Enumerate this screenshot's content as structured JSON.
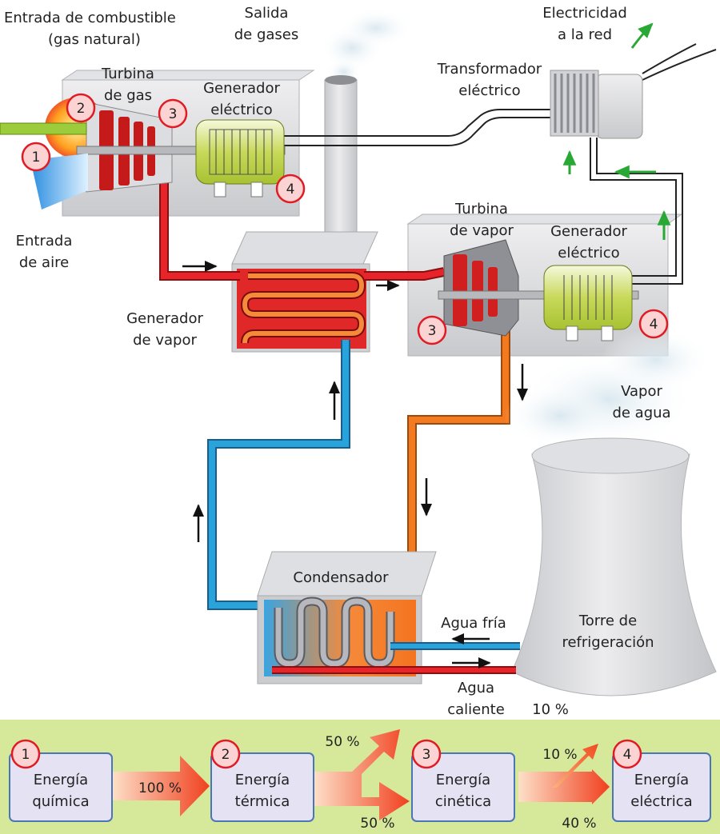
{
  "labels": {
    "fuel_inlet_1": "Entrada de combustible",
    "fuel_inlet_2": "(gas natural)",
    "air_inlet_1": "Entrada",
    "air_inlet_2": "de aire",
    "gas_turbine_1": "Turbina",
    "gas_turbine_2": "de gas",
    "generator_top_1": "Generador",
    "generator_top_2": "eléctrico",
    "gas_outlet_1": "Salida",
    "gas_outlet_2": "de gases",
    "grid_1": "Electricidad",
    "grid_2": "a la red",
    "transformer_1": "Transformador",
    "transformer_2": "eléctrico",
    "steam_turbine_1": "Turbina",
    "steam_turbine_2": "de vapor",
    "generator_right_1": "Generador",
    "generator_right_2": "eléctrico",
    "steam_generator_1": "Generador",
    "steam_generator_2": "de vapor",
    "water_vapor_1": "Vapor",
    "water_vapor_2": "de agua",
    "condenser": "Condensador",
    "cold_water": "Agua fría",
    "hot_water_1": "Agua",
    "hot_water_2": "caliente",
    "tower_1": "Torre de",
    "tower_2": "refrigeración",
    "pct_tower": "10 %"
  },
  "markers": {
    "m1": "1",
    "m2": "2",
    "m3a": "3",
    "m4a": "4",
    "m3b": "3",
    "m4b": "4"
  },
  "energy_chain": {
    "boxes": [
      {
        "num": "1",
        "line1": "Energía",
        "line2": "química"
      },
      {
        "num": "2",
        "line1": "Energía",
        "line2": "térmica"
      },
      {
        "num": "3",
        "line1": "Energía",
        "line2": "cinética"
      },
      {
        "num": "4",
        "line1": "Energía",
        "line2": "eléctrica"
      }
    ],
    "pct_100": "100 %",
    "pct_50_up": "50 %",
    "pct_50_down": "50 %",
    "pct_10": "10 %",
    "pct_40": "40 %"
  },
  "colors": {
    "hot_pipe": "#e8232a",
    "warm_pipe": "#f47a20",
    "cold_pipe": "#29a3dc",
    "marker_fill": "#fbd3d3",
    "marker_stroke": "#e01b24",
    "panel_bg": "#d6e89a",
    "energy_box": "#e5e2f3",
    "energy_box_border": "#4a76b8",
    "green_arrow": "#2aa836"
  }
}
